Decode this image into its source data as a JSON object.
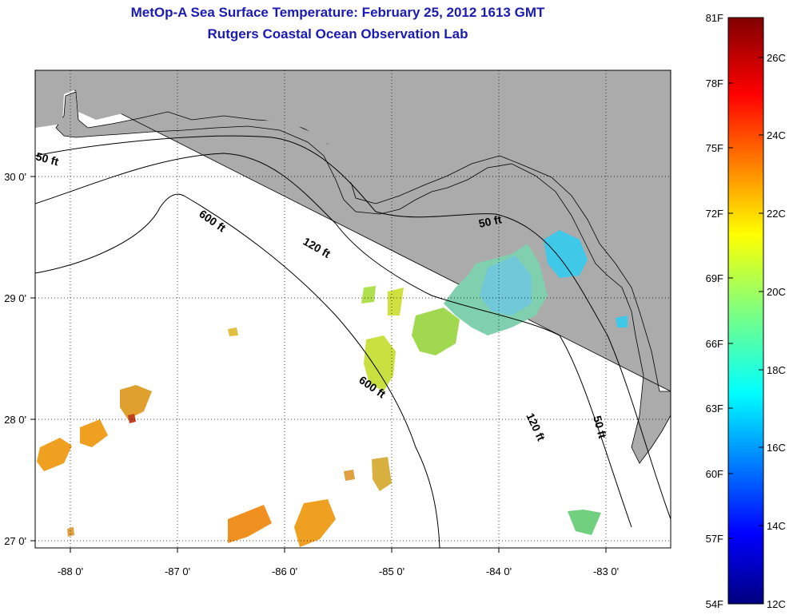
{
  "title": {
    "line1": "MetOp-A Sea Surface Temperature:  February 25, 2012 1613 GMT",
    "line2": "Rutgers Coastal Ocean Observation Lab"
  },
  "map": {
    "lon_labels": [
      "-88 0'",
      "-87 0'",
      "-86 0'",
      "-85 0'",
      "-84 0'",
      "-83 0'"
    ],
    "lat_labels": [
      "30 0'",
      "29 0'",
      "28 0'",
      "27 0'"
    ],
    "contour_labels": [
      "50 ft",
      "600 ft",
      "120 ft",
      "50 ft",
      "600 ft",
      "120 ft",
      "50 ft"
    ]
  },
  "colorbar": {
    "fahrenheit": [
      "81F",
      "78F",
      "75F",
      "72F",
      "69F",
      "66F",
      "63F",
      "60F",
      "57F",
      "54F"
    ],
    "celsius": [
      "26C",
      "24C",
      "22C",
      "20C",
      "18C",
      "16C",
      "14C",
      "12C"
    ]
  },
  "colors": {
    "title": "#1a1ab5",
    "land": "#ababab",
    "warm": "#f0a020",
    "mid": "#90d050",
    "cool": "#40c8e8"
  }
}
